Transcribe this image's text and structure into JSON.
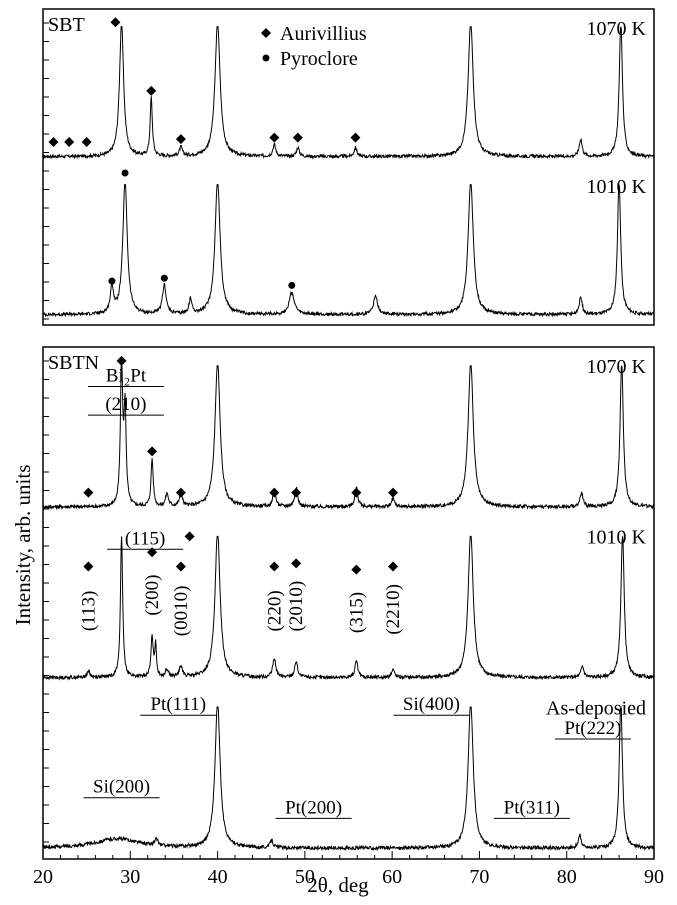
{
  "chart_data": {
    "type": "line",
    "xlabel": "2θ, deg",
    "ylabel": "Intensity, arb. units",
    "xlim": [
      20,
      90
    ],
    "x_ticks": [
      20,
      30,
      40,
      50,
      60,
      70,
      80,
      90
    ],
    "grid": false,
    "panels": [
      {
        "label": "SBT",
        "legend": {
          "placement": "top-center",
          "entries": [
            {
              "symbol": "diamond",
              "label": "Aurivillius"
            },
            {
              "symbol": "circle",
              "label": "Pyroclore"
            }
          ]
        },
        "series": [
          {
            "name": "1070 K",
            "baseline": 3,
            "clip": 92,
            "peaks": [
              [
                29.0,
                92,
                0.28
              ],
              [
                32.4,
                40,
                0.15
              ],
              [
                35.8,
                6,
                0.2
              ],
              [
                40.0,
                92,
                0.35
              ],
              [
                46.5,
                8,
                0.2
              ],
              [
                49.2,
                6,
                0.2
              ],
              [
                55.8,
                6,
                0.2
              ],
              [
                69.0,
                92,
                0.35
              ],
              [
                81.6,
                12,
                0.2
              ],
              [
                86.2,
                92,
                0.22
              ]
            ],
            "markers": [
              {
                "symbol": "diamond",
                "x": 21.2,
                "y": 13
              },
              {
                "symbol": "diamond",
                "x": 23.0,
                "y": 13
              },
              {
                "symbol": "diamond",
                "x": 25.0,
                "y": 13
              },
              {
                "symbol": "diamond",
                "x": 28.3,
                "y": 95
              },
              {
                "symbol": "diamond",
                "x": 32.4,
                "y": 48
              },
              {
                "symbol": "diamond",
                "x": 35.8,
                "y": 15
              },
              {
                "symbol": "diamond",
                "x": 46.5,
                "y": 16
              },
              {
                "symbol": "diamond",
                "x": 49.2,
                "y": 16
              },
              {
                "symbol": "diamond",
                "x": 55.8,
                "y": 16
              }
            ]
          },
          {
            "name": "1010 K",
            "baseline": 3,
            "clip": 92,
            "peaks": [
              [
                27.9,
                18,
                0.22
              ],
              [
                29.4,
                92,
                0.3
              ],
              [
                33.9,
                20,
                0.25
              ],
              [
                36.9,
                10,
                0.2
              ],
              [
                40.0,
                92,
                0.35
              ],
              [
                48.5,
                15,
                0.35
              ],
              [
                58.1,
                12,
                0.3
              ],
              [
                69.0,
                92,
                0.35
              ],
              [
                81.6,
                12,
                0.2
              ],
              [
                86.0,
                92,
                0.22
              ]
            ],
            "markers": [
              {
                "symbol": "circle",
                "x": 27.9,
                "y": 26
              },
              {
                "symbol": "circle",
                "x": 29.4,
                "y": 100
              },
              {
                "symbol": "circle",
                "x": 33.9,
                "y": 28
              },
              {
                "symbol": "circle",
                "x": 48.5,
                "y": 23
              }
            ]
          }
        ]
      },
      {
        "label": "SBTN",
        "series": [
          {
            "name": "1070 K",
            "baseline": 3,
            "clip": 92,
            "peaks": [
              [
                29.0,
                92,
                0.15
              ],
              [
                29.4,
                60,
                0.15
              ],
              [
                32.5,
                30,
                0.15
              ],
              [
                34.2,
                8,
                0.2
              ],
              [
                35.8,
                8,
                0.2
              ],
              [
                40.0,
                92,
                0.35
              ],
              [
                46.5,
                10,
                0.2
              ],
              [
                49.0,
                12,
                0.2
              ],
              [
                55.9,
                12,
                0.2
              ],
              [
                60.1,
                5,
                0.2
              ],
              [
                69.0,
                92,
                0.35
              ],
              [
                81.7,
                9,
                0.2
              ],
              [
                86.3,
                92,
                0.22
              ]
            ],
            "markers": [
              {
                "symbol": "diamond",
                "x": 25.2,
                "y": 12
              },
              {
                "symbol": "diamond",
                "x": 29.0,
                "y": 95
              },
              {
                "symbol": "diamond",
                "x": 32.5,
                "y": 38
              },
              {
                "symbol": "diamond",
                "x": 35.8,
                "y": 12
              },
              {
                "symbol": "diamond",
                "x": 46.5,
                "y": 12
              },
              {
                "symbol": "diamond",
                "x": 49.0,
                "y": 12
              },
              {
                "symbol": "diamond",
                "x": 55.9,
                "y": 12
              },
              {
                "symbol": "diamond",
                "x": 60.1,
                "y": 12
              }
            ],
            "annotations": [
              {
                "text": "Bi₂Pt",
                "x": 29.5,
                "y": 82
              },
              {
                "text": "(210)",
                "x": 29.5,
                "y": 64
              }
            ]
          },
          {
            "name": "1010 K",
            "baseline": 3,
            "clip": 92,
            "peaks": [
              [
                25.2,
                4,
                0.2
              ],
              [
                29.0,
                90,
                0.15
              ],
              [
                32.5,
                25,
                0.15
              ],
              [
                32.9,
                20,
                0.12
              ],
              [
                34.2,
                5,
                0.2
              ],
              [
                35.8,
                7,
                0.2
              ],
              [
                40.0,
                92,
                0.35
              ],
              [
                46.5,
                12,
                0.2
              ],
              [
                49.0,
                10,
                0.2
              ],
              [
                55.9,
                10,
                0.2
              ],
              [
                60.1,
                5,
                0.2
              ],
              [
                69.0,
                92,
                0.35
              ],
              [
                81.8,
                7,
                0.2
              ],
              [
                86.4,
                92,
                0.22
              ]
            ],
            "markers": [
              {
                "symbol": "diamond",
                "x": 25.2,
                "y": 73
              },
              {
                "symbol": "diamond",
                "x": 32.5,
                "y": 82
              },
              {
                "symbol": "diamond",
                "x": 36.8,
                "y": 92
              },
              {
                "symbol": "diamond",
                "x": 35.8,
                "y": 73
              },
              {
                "symbol": "diamond",
                "x": 46.5,
                "y": 73
              },
              {
                "symbol": "diamond",
                "x": 49.0,
                "y": 75
              },
              {
                "symbol": "diamond",
                "x": 55.9,
                "y": 71
              },
              {
                "symbol": "diamond",
                "x": 60.1,
                "y": 73
              }
            ],
            "annotations": [
              {
                "text": "(115)",
                "x": 31.7,
                "y": 87
              },
              {
                "text": "(113)",
                "x": 25.2,
                "y": 45,
                "rotate": true
              },
              {
                "text": "(200)",
                "x": 32.5,
                "y": 55,
                "rotate": true
              },
              {
                "text": "(0010)",
                "x": 35.8,
                "y": 45,
                "rotate": true
              },
              {
                "text": "(220)",
                "x": 46.5,
                "y": 45,
                "rotate": true
              },
              {
                "text": "(2010)",
                "x": 49.0,
                "y": 48,
                "rotate": true
              },
              {
                "text": "(315)",
                "x": 55.9,
                "y": 44,
                "rotate": true
              },
              {
                "text": "(2210)",
                "x": 60.1,
                "y": 46,
                "rotate": true
              }
            ]
          },
          {
            "name": "As-deposied",
            "baseline": 3,
            "clip": 92,
            "peaks": [
              [
                28.5,
                6,
                3.0
              ],
              [
                33.0,
                4,
                0.2
              ],
              [
                40.0,
                92,
                0.35
              ],
              [
                46.2,
                5,
                0.2
              ],
              [
                69.0,
                92,
                0.35
              ],
              [
                81.5,
                8,
                0.2
              ],
              [
                86.2,
                92,
                0.22
              ]
            ],
            "annotations": [
              {
                "text": "Pt(111)",
                "x": 35.5,
                "y": 90
              },
              {
                "text": "Si(200)",
                "x": 29.0,
                "y": 38
              },
              {
                "text": "Pt(200)",
                "x": 51.0,
                "y": 25
              },
              {
                "text": "Si(400)",
                "x": 64.5,
                "y": 90
              },
              {
                "text": "Pt(311)",
                "x": 76.0,
                "y": 25
              },
              {
                "text": "Pt(222)",
                "x": 83.0,
                "y": 75
              }
            ]
          }
        ]
      }
    ]
  }
}
